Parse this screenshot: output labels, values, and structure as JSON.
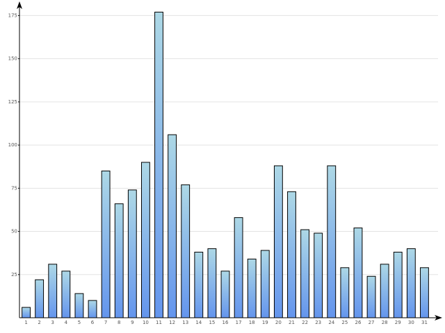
{
  "chart_data": {
    "type": "bar",
    "categories": [
      "1",
      "2",
      "3",
      "4",
      "5",
      "6",
      "7",
      "8",
      "9",
      "10",
      "11",
      "12",
      "13",
      "14",
      "15",
      "16",
      "17",
      "18",
      "19",
      "20",
      "21",
      "22",
      "23",
      "24",
      "25",
      "26",
      "27",
      "28",
      "29",
      "30",
      "31"
    ],
    "values": [
      6,
      22,
      31,
      27,
      14,
      10,
      85,
      66,
      74,
      90,
      177,
      106,
      77,
      38,
      40,
      27,
      58,
      34,
      39,
      88,
      73,
      51,
      49,
      88,
      29,
      52,
      24,
      31,
      38,
      40,
      29
    ],
    "gradient": [
      "#add8e6",
      "#6495ed"
    ],
    "ylim": [
      0,
      182
    ],
    "yticks": [
      25,
      50,
      75,
      100,
      125,
      150,
      175
    ],
    "grid": true
  }
}
